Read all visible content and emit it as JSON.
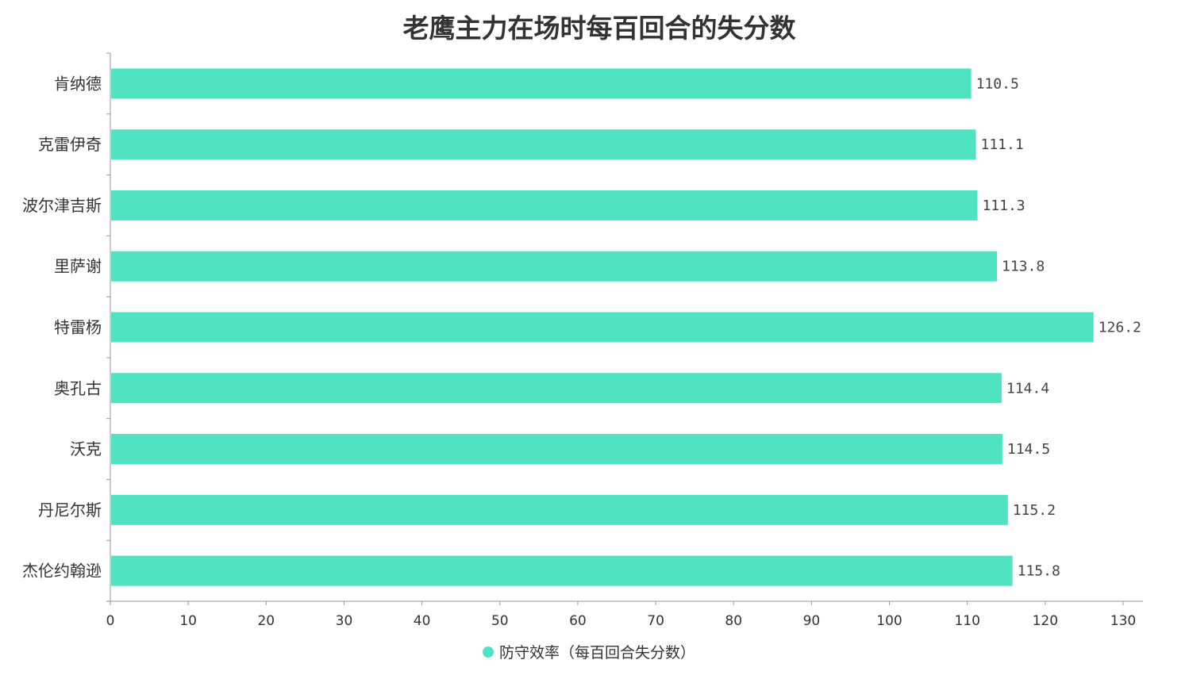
{
  "chart_data": {
    "type": "bar",
    "orientation": "horizontal",
    "title": "老鹰主力在场时每百回合的失分数",
    "categories": [
      "肯纳德",
      "克雷伊奇",
      "波尔津吉斯",
      "里萨谢",
      "特雷杨",
      "奥孔古",
      "沃克",
      "丹尼尔斯",
      "杰伦约翰逊"
    ],
    "series": [
      {
        "name": "防守效率（每百回合失分数）",
        "values": [
          110.5,
          111.1,
          111.3,
          113.8,
          126.2,
          114.4,
          114.5,
          115.2,
          115.8
        ],
        "labels": [
          "110.5",
          "111.1",
          "111.3",
          "113.8",
          "126.2",
          "114.4",
          "114.5",
          "115.2",
          "115.8"
        ],
        "color": "#50e3c2"
      }
    ],
    "xlim": [
      0,
      130
    ],
    "xticks": [
      "0",
      "10",
      "20",
      "30",
      "40",
      "50",
      "60",
      "70",
      "80",
      "90",
      "100",
      "110",
      "120",
      "130"
    ],
    "grid": false,
    "legend_position": "bottom-center"
  }
}
